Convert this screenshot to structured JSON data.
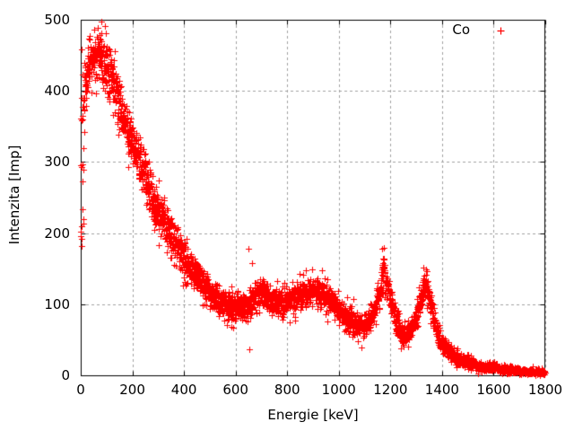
{
  "chart_data": {
    "type": "scatter",
    "title": "",
    "xlabel": "Energie [keV]",
    "ylabel": "Intenzita [Imp]",
    "xlim": [
      0,
      1800
    ],
    "ylim": [
      0,
      500
    ],
    "xticks": [
      0,
      200,
      400,
      600,
      800,
      1000,
      1200,
      1400,
      1600,
      1800
    ],
    "yticks": [
      0,
      100,
      200,
      300,
      400,
      500
    ],
    "grid": {
      "visible": true,
      "style": "dashed",
      "color": "#a0a0a0"
    },
    "frame_color": "#000000",
    "background": "#ffffff",
    "legend": {
      "label": "Co",
      "position": "top-right-inside"
    },
    "series": [
      {
        "name": "Co",
        "color": "#ff0000",
        "marker": "plus",
        "marker_size_px": 7,
        "sampling": {
          "x_step_kev": 0.5,
          "noise": "poisson",
          "seed": 13
        },
        "low_energy_noise_band": {
          "x_from": 0,
          "x_to": 12,
          "y_min": 180,
          "y_max": 500
        },
        "envelope_points": [
          [
            12,
            390
          ],
          [
            25,
            420
          ],
          [
            40,
            440
          ],
          [
            60,
            450
          ],
          [
            80,
            444
          ],
          [
            100,
            434
          ],
          [
            120,
            416
          ],
          [
            140,
            394
          ],
          [
            160,
            370
          ],
          [
            180,
            346
          ],
          [
            200,
            325
          ],
          [
            225,
            300
          ],
          [
            250,
            276
          ],
          [
            275,
            252
          ],
          [
            300,
            232
          ],
          [
            325,
            212
          ],
          [
            350,
            196
          ],
          [
            375,
            180
          ],
          [
            400,
            163
          ],
          [
            425,
            150
          ],
          [
            450,
            139
          ],
          [
            475,
            128
          ],
          [
            500,
            119
          ],
          [
            525,
            109
          ],
          [
            550,
            103
          ],
          [
            575,
            98
          ],
          [
            600,
            95
          ],
          [
            625,
            95
          ],
          [
            650,
            100
          ],
          [
            675,
            110
          ],
          [
            700,
            118
          ],
          [
            715,
            113
          ],
          [
            735,
            106
          ],
          [
            760,
            103
          ],
          [
            785,
            105
          ],
          [
            810,
            108
          ],
          [
            840,
            113
          ],
          [
            870,
            117
          ],
          [
            900,
            119
          ],
          [
            930,
            116
          ],
          [
            960,
            109
          ],
          [
            990,
            98
          ],
          [
            1015,
            86
          ],
          [
            1040,
            77
          ],
          [
            1065,
            71
          ],
          [
            1090,
            70
          ],
          [
            1115,
            74
          ],
          [
            1135,
            88
          ],
          [
            1152,
            110
          ],
          [
            1164,
            132
          ],
          [
            1173,
            147
          ],
          [
            1182,
            136
          ],
          [
            1192,
            118
          ],
          [
            1205,
            97
          ],
          [
            1218,
            80
          ],
          [
            1232,
            67
          ],
          [
            1246,
            59
          ],
          [
            1260,
            58
          ],
          [
            1274,
            64
          ],
          [
            1290,
            75
          ],
          [
            1305,
            93
          ],
          [
            1318,
            111
          ],
          [
            1330,
            126
          ],
          [
            1340,
            121
          ],
          [
            1350,
            108
          ],
          [
            1362,
            90
          ],
          [
            1375,
            70
          ],
          [
            1388,
            55
          ],
          [
            1400,
            46
          ],
          [
            1415,
            38
          ],
          [
            1435,
            30
          ],
          [
            1455,
            25
          ],
          [
            1480,
            20
          ],
          [
            1505,
            17
          ],
          [
            1530,
            14
          ],
          [
            1560,
            12
          ],
          [
            1590,
            11
          ],
          [
            1620,
            10
          ],
          [
            1650,
            8
          ],
          [
            1680,
            7
          ],
          [
            1710,
            6
          ],
          [
            1740,
            5
          ],
          [
            1770,
            5
          ],
          [
            1800,
            4
          ]
        ],
        "outliers": [
          [
            650,
            178
          ],
          [
            662,
            158
          ],
          [
            653,
            37
          ],
          [
            935,
            148
          ],
          [
            1058,
            107
          ],
          [
            1168,
            178
          ],
          [
            1327,
            152
          ]
        ]
      }
    ]
  }
}
